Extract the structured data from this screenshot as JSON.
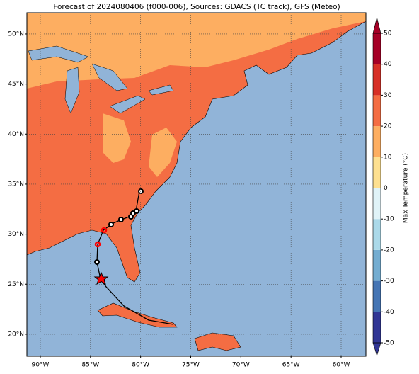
{
  "title": "Forecast of 2024080406 (f000-006), Sources: GDACS (TC track), GFS (Meteo)",
  "map": {
    "xlim": [
      -91.34,
      -57.53
    ],
    "ylim": [
      17.8,
      52.12
    ],
    "xticks": [
      {
        "value": -90,
        "label": "90°W"
      },
      {
        "value": -85,
        "label": "85°W"
      },
      {
        "value": -80,
        "label": "80°W"
      },
      {
        "value": -75,
        "label": "75°W"
      },
      {
        "value": -70,
        "label": "70°W"
      },
      {
        "value": -65,
        "label": "65°W"
      },
      {
        "value": -60,
        "label": "60°W"
      }
    ],
    "yticks": [
      {
        "value": 20,
        "label": "20°N"
      },
      {
        "value": 25,
        "label": "25°N"
      },
      {
        "value": 30,
        "label": "30°N"
      },
      {
        "value": 35,
        "label": "35°N"
      },
      {
        "value": 40,
        "label": "40°N"
      },
      {
        "value": 45,
        "label": "45°N"
      },
      {
        "value": 50,
        "label": "50°N"
      }
    ],
    "grid": true
  },
  "colorbar": {
    "label": "Max Temperature (°C)",
    "lim": [
      -50,
      50
    ],
    "ticks": [
      -50,
      -40,
      -30,
      -20,
      -10,
      0,
      10,
      20,
      30,
      40,
      50
    ],
    "colors": [
      "#313695",
      "#4575b4",
      "#74add1",
      "#abd9e9",
      "#e0f3f8",
      "#fee090",
      "#fdae61",
      "#f46d43",
      "#d73027",
      "#a50026"
    ]
  }
}
